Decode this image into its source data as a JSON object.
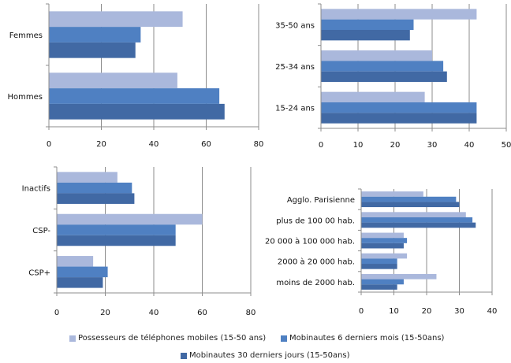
{
  "colors": {
    "series1": "#aab8dc",
    "series2": "#4f80c2",
    "series3": "#4169a4",
    "grid": "#8c8c8c"
  },
  "legend": [
    "Possesseurs de téléphones mobiles (15-50 ans)",
    "Mobinautes 6 derniers mois (15-50ans)",
    "Mobinautes 30 derniers jours (15-50ans)"
  ],
  "chart_data": [
    {
      "type": "bar",
      "orientation": "horizontal",
      "title": "",
      "categories": [
        "Femmes",
        "Hommes"
      ],
      "series": [
        {
          "name": "Possesseurs de téléphones mobiles (15-50 ans)",
          "values": [
            51,
            49
          ]
        },
        {
          "name": "Mobinautes 6 derniers mois (15-50ans)",
          "values": [
            35,
            65
          ]
        },
        {
          "name": "Mobinautes 30 derniers jours (15-50ans)",
          "values": [
            33,
            67
          ]
        }
      ],
      "xlim": [
        0,
        80
      ],
      "xticks": [
        "0",
        "20",
        "40",
        "60",
        "80"
      ],
      "grid": true
    },
    {
      "type": "bar",
      "orientation": "horizontal",
      "title": "",
      "categories": [
        "35-50 ans",
        "25-34 ans",
        "15-24 ans"
      ],
      "series": [
        {
          "name": "Possesseurs de téléphones mobiles (15-50 ans)",
          "values": [
            42,
            30,
            28
          ]
        },
        {
          "name": "Mobinautes 6 derniers mois (15-50ans)",
          "values": [
            25,
            33,
            42
          ]
        },
        {
          "name": "Mobinautes 30 derniers jours (15-50ans)",
          "values": [
            24,
            34,
            42
          ]
        }
      ],
      "xlim": [
        0,
        50
      ],
      "xticks": [
        "0",
        "10",
        "20",
        "30",
        "40",
        "50"
      ],
      "grid": true
    },
    {
      "type": "bar",
      "orientation": "horizontal",
      "title": "",
      "categories": [
        "Inactifs",
        "CSP-",
        "CSP+"
      ],
      "series": [
        {
          "name": "Possesseurs de téléphones mobiles (15-50 ans)",
          "values": [
            25,
            60,
            15
          ]
        },
        {
          "name": "Mobinautes 6 derniers mois (15-50ans)",
          "values": [
            31,
            49,
            21
          ]
        },
        {
          "name": "Mobinautes 30 derniers jours (15-50ans)",
          "values": [
            32,
            49,
            19
          ]
        }
      ],
      "xlim": [
        0,
        80
      ],
      "xticks": [
        "0",
        "20",
        "40",
        "60",
        "80"
      ],
      "grid": true
    },
    {
      "type": "bar",
      "orientation": "horizontal",
      "title": "",
      "categories": [
        "Agglo. Parisienne",
        "plus de 100 00 hab.",
        "20 000 à 100 000 hab.",
        "2000 à 20 000 hab.",
        "moins de 2000 hab."
      ],
      "series": [
        {
          "name": "Possesseurs de téléphones mobiles (15-50 ans)",
          "values": [
            19,
            32,
            13,
            14,
            23
          ]
        },
        {
          "name": "Mobinautes 6 derniers mois (15-50ans)",
          "values": [
            29,
            34,
            14,
            11,
            13
          ]
        },
        {
          "name": "Mobinautes 30 derniers jours (15-50ans)",
          "values": [
            30,
            35,
            13,
            11,
            11
          ]
        }
      ],
      "xlim": [
        0,
        40
      ],
      "xticks": [
        "0",
        "10",
        "20",
        "30",
        "40"
      ],
      "grid": true
    }
  ]
}
